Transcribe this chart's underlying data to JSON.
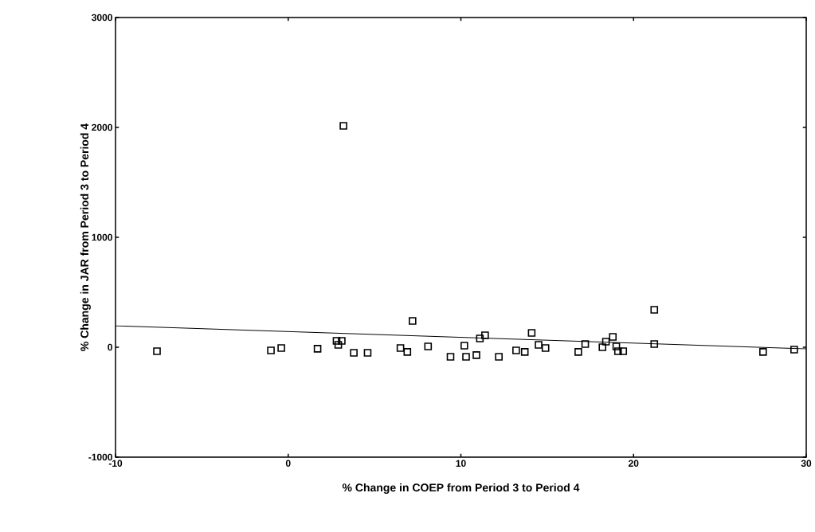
{
  "chart_data": {
    "type": "scatter",
    "xlabel": "% Change in COEP from Period 3 to Period 4",
    "ylabel": "% Change in JAR from Period 3 to Period 4",
    "xlim": [
      -10,
      30
    ],
    "ylim": [
      -1000,
      3000
    ],
    "xticks": [
      -10,
      0,
      10,
      20,
      30
    ],
    "yticks": [
      -1000,
      0,
      1000,
      2000,
      3000
    ],
    "grid": false,
    "series": [
      {
        "color": "#000000",
        "marker": "square",
        "x": [
          -7.6,
          -1.0,
          -0.4,
          1.7,
          2.8,
          3.1,
          2.9,
          3.2,
          3.8,
          4.6,
          6.5,
          6.9,
          7.2,
          8.1,
          9.4,
          10.2,
          10.3,
          10.9,
          11.1,
          11.4,
          12.2,
          13.2,
          13.7,
          14.1,
          14.5,
          14.9,
          16.8,
          17.2,
          18.2,
          18.4,
          18.8,
          19.0,
          19.1,
          19.4,
          21.2,
          21.2,
          27.5,
          29.3
        ],
        "values": [
          -36,
          -29,
          -7,
          -14,
          58,
          58,
          22,
          2014,
          -51,
          -51,
          -7,
          -43,
          239,
          7,
          -87,
          14,
          -87,
          -72,
          80,
          109,
          -87,
          -29,
          -43,
          130,
          22,
          -7,
          -43,
          29,
          0,
          51,
          94,
          7,
          -36,
          -36,
          341,
          29,
          -43,
          -22
        ]
      },
      {
        "type": "line",
        "marker": "none",
        "color": "#000000",
        "x": [
          -10,
          30
        ],
        "values": [
          195,
          -15
        ]
      }
    ]
  }
}
